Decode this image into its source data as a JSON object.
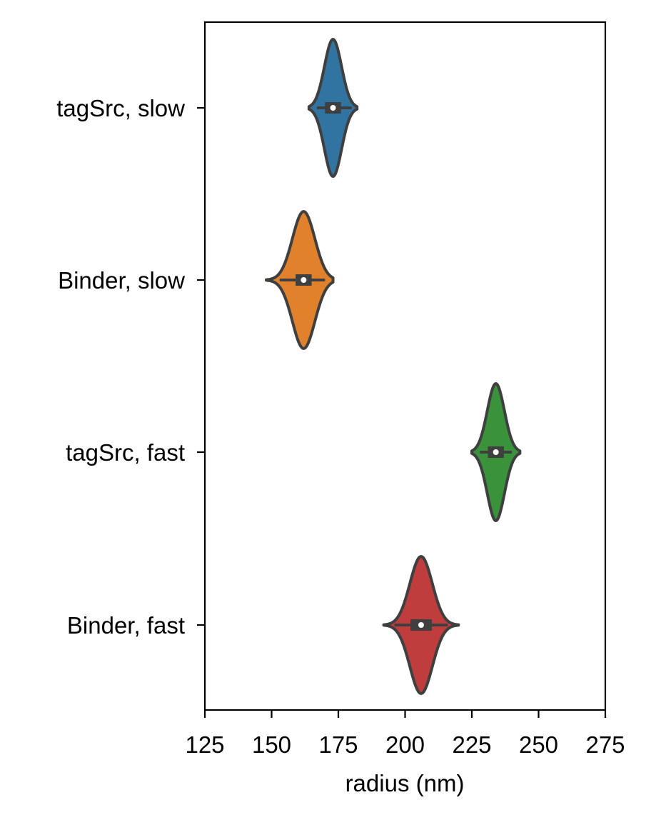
{
  "chart_data": {
    "type": "violin",
    "orientation": "horizontal",
    "xlabel": "radius (nm)",
    "ylabel": "",
    "xlim": [
      125,
      275
    ],
    "xticks": [
      "125",
      "150",
      "175",
      "200",
      "225",
      "250",
      "275"
    ],
    "categories": [
      "tagSrc, slow",
      "Binder, slow",
      "tagSrc, fast",
      "Binder, fast"
    ],
    "series": [
      {
        "category": "tagSrc, slow",
        "color": "#3274a1",
        "min": 165,
        "q1": 170,
        "median": 173,
        "q3": 176,
        "max": 181,
        "whisker_low": 167,
        "whisker_high": 180,
        "density_sigma": 3.2,
        "kde_extent": [
          164,
          182
        ]
      },
      {
        "category": "Binder, slow",
        "color": "#e1812c",
        "min": 149,
        "q1": 159,
        "median": 162,
        "q3": 165,
        "max": 172,
        "whisker_low": 153,
        "whisker_high": 170,
        "density_sigma": 4.2,
        "kde_extent": [
          148,
          173
        ]
      },
      {
        "category": "tagSrc, fast",
        "color": "#3a923a",
        "min": 226,
        "q1": 231,
        "median": 234,
        "q3": 237,
        "max": 242,
        "whisker_low": 228,
        "whisker_high": 240,
        "density_sigma": 3.2,
        "kde_extent": [
          225,
          243
        ]
      },
      {
        "category": "Binder, fast",
        "color": "#c03d3e",
        "min": 193,
        "q1": 202,
        "median": 206,
        "q3": 210,
        "max": 219,
        "whisker_low": 196,
        "whisker_high": 216,
        "density_sigma": 4.2,
        "kde_extent": [
          192,
          220
        ]
      }
    ],
    "grid": false,
    "legend": "none"
  }
}
